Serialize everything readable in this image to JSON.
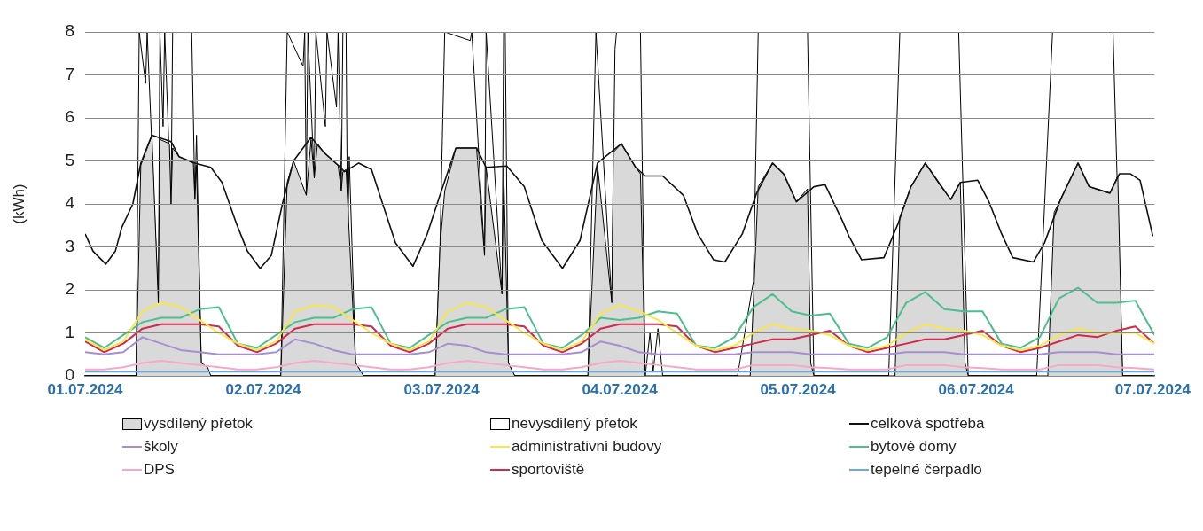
{
  "chart_data": {
    "type": "line",
    "ylabel": "(kWh)",
    "ylim": [
      0,
      8
    ],
    "yticks": [
      0,
      1,
      2,
      3,
      4,
      5,
      6,
      7,
      8
    ],
    "xlim": [
      "2024-07-01T00:00",
      "2024-07-08T00:00"
    ],
    "xticks": [
      {
        "value": "2024-07-01T00:00",
        "label": "01.07.2024"
      },
      {
        "value": "2024-07-02T04:00",
        "label": "02.07.2024"
      },
      {
        "value": "2024-07-03T08:00",
        "label": "03.07.2024"
      },
      {
        "value": "2024-07-04T12:00",
        "label": "04.07.2024"
      },
      {
        "value": "2024-07-05T16:00",
        "label": "05.07.2024"
      },
      {
        "value": "2024-07-06T20:00",
        "label": "06.07.2024"
      },
      {
        "value": "2024-07-07T23:45",
        "label": "07.07.2024"
      }
    ],
    "grid": "y",
    "legend": "bottom",
    "x": [
      "2024-07-01T00:00",
      "2024-07-01T03:00",
      "2024-07-01T06:00",
      "2024-07-01T09:00",
      "2024-07-01T12:00",
      "2024-07-01T15:00",
      "2024-07-01T18:00",
      "2024-07-01T21:00",
      "2024-07-02T00:00",
      "2024-07-02T03:00",
      "2024-07-02T06:00",
      "2024-07-02T09:00",
      "2024-07-02T12:00",
      "2024-07-02T15:00",
      "2024-07-02T18:00",
      "2024-07-02T21:00",
      "2024-07-03T00:00",
      "2024-07-03T03:00",
      "2024-07-03T06:00",
      "2024-07-03T09:00",
      "2024-07-03T12:00",
      "2024-07-03T15:00",
      "2024-07-03T18:00",
      "2024-07-03T21:00",
      "2024-07-04T00:00",
      "2024-07-04T03:00",
      "2024-07-04T06:00",
      "2024-07-04T09:00",
      "2024-07-04T12:00",
      "2024-07-04T15:00",
      "2024-07-04T18:00",
      "2024-07-04T21:00",
      "2024-07-05T00:00",
      "2024-07-05T03:00",
      "2024-07-05T06:00",
      "2024-07-05T09:00",
      "2024-07-05T12:00",
      "2024-07-05T15:00",
      "2024-07-05T18:00",
      "2024-07-05T21:00",
      "2024-07-06T00:00",
      "2024-07-06T03:00",
      "2024-07-06T06:00",
      "2024-07-06T09:00",
      "2024-07-06T12:00",
      "2024-07-06T15:00",
      "2024-07-06T18:00",
      "2024-07-06T21:00",
      "2024-07-07T00:00",
      "2024-07-07T03:00",
      "2024-07-07T06:00",
      "2024-07-07T09:00",
      "2024-07-07T12:00",
      "2024-07-07T15:00",
      "2024-07-07T18:00",
      "2024-07-07T21:00",
      "2024-07-08T00:00"
    ],
    "series": [
      {
        "name": "vysdílený přetok",
        "type": "area",
        "color": "#d9d9d9",
        "x": [
          "2024-07-01T00:00",
          "2024-07-01T08:00",
          "2024-07-01T08:45",
          "2024-07-01T10:30",
          "2024-07-01T11:30",
          "2024-07-01T11:45",
          "2024-07-01T13:15",
          "2024-07-01T13:30",
          "2024-07-01T13:45",
          "2024-07-01T14:45",
          "2024-07-01T17:00",
          "2024-07-01T17:15",
          "2024-07-01T17:30",
          "2024-07-01T18:15",
          "2024-07-01T19:15",
          "2024-07-01T19:45",
          "2024-07-02T06:45",
          "2024-07-02T07:45",
          "2024-07-02T08:45",
          "2024-07-02T10:45",
          "2024-07-02T11:30",
          "2024-07-02T12:00",
          "2024-07-02T12:30",
          "2024-07-02T13:30",
          "2024-07-02T15:45",
          "2024-07-02T16:15",
          "2024-07-02T16:30",
          "2024-07-02T17:00",
          "2024-07-02T18:30",
          "2024-07-02T19:45",
          "2024-07-03T07:00",
          "2024-07-03T07:45",
          "2024-07-03T08:30",
          "2024-07-03T10:15",
          "2024-07-03T13:30",
          "2024-07-03T14:45",
          "2024-07-03T15:00",
          "2024-07-03T17:30",
          "2024-07-03T17:45",
          "2024-07-03T18:30",
          "2024-07-03T19:30",
          "2024-07-04T07:00",
          "2024-07-04T08:30",
          "2024-07-04T10:45",
          "2024-07-04T11:00",
          "2024-07-04T12:15",
          "2024-07-04T14:30",
          "2024-07-04T15:15",
          "2024-07-04T16:00",
          "2024-07-05T08:30",
          "2024-07-05T09:45",
          "2024-07-05T12:00",
          "2024-07-05T13:45",
          "2024-07-05T15:45",
          "2024-07-05T17:30",
          "2024-07-05T18:00",
          "2024-07-05T18:30",
          "2024-07-06T07:15",
          "2024-07-06T08:00",
          "2024-07-06T09:45",
          "2024-07-06T12:00",
          "2024-07-06T14:15",
          "2024-07-06T16:00",
          "2024-07-06T17:30",
          "2024-07-06T18:15",
          "2024-07-06T18:45",
          "2024-07-07T07:15",
          "2024-07-07T08:15",
          "2024-07-07T09:15",
          "2024-07-07T12:00",
          "2024-07-07T13:45",
          "2024-07-07T17:00",
          "2024-07-07T18:15",
          "2024-07-07T19:00",
          "2024-07-07T23:45"
        ],
        "values": [
          0,
          0,
          4.9,
          5.6,
          1.7,
          5.5,
          5.4,
          4.0,
          5.3,
          5.1,
          4.95,
          4.1,
          4.9,
          0.3,
          0.2,
          0,
          0,
          4.5,
          5.0,
          4.2,
          5.5,
          4.6,
          5.4,
          5.2,
          4.9,
          4.3,
          4.75,
          4.8,
          0.3,
          0,
          0,
          3.0,
          4.3,
          5.3,
          5.3,
          2.8,
          4.85,
          1.9,
          4.85,
          0.3,
          0,
          0,
          4.9,
          1.7,
          5.2,
          5.4,
          4.85,
          4.7,
          0,
          0,
          4.4,
          4.95,
          4.7,
          4.05,
          4.35,
          0.3,
          0,
          0,
          3.7,
          4.4,
          4.95,
          4.45,
          4.1,
          4.5,
          0.3,
          0,
          0,
          3.8,
          4.1,
          4.95,
          4.4,
          4.25,
          4.65,
          0,
          0
        ]
      },
      {
        "name": "nevysdílený přetok",
        "type": "area",
        "color": "#ffffff",
        "x": [
          "2024-07-01T00:00",
          "2024-07-01T08:00",
          "2024-07-01T08:30",
          "2024-07-01T09:30",
          "2024-07-01T09:45",
          "2024-07-01T11:30",
          "2024-07-01T11:45",
          "2024-07-01T12:15",
          "2024-07-01T12:30",
          "2024-07-01T13:30",
          "2024-07-01T13:45",
          "2024-07-01T16:45",
          "2024-07-01T17:15",
          "2024-07-01T17:30",
          "2024-07-01T18:15",
          "2024-07-01T19:45",
          "2024-07-02T06:45",
          "2024-07-02T07:45",
          "2024-07-02T10:15",
          "2024-07-02T10:30",
          "2024-07-02T10:45",
          "2024-07-02T11:00",
          "2024-07-02T12:00",
          "2024-07-02T12:15",
          "2024-07-02T13:45",
          "2024-07-02T14:00",
          "2024-07-02T15:30",
          "2024-07-02T15:45",
          "2024-07-02T16:15",
          "2024-07-02T16:30",
          "2024-07-02T17:00",
          "2024-07-02T17:15",
          "2024-07-02T17:30",
          "2024-07-02T18:30",
          "2024-07-02T19:45",
          "2024-07-03T07:00",
          "2024-07-03T07:45",
          "2024-07-03T08:30",
          "2024-07-03T12:30",
          "2024-07-03T12:45",
          "2024-07-03T14:45",
          "2024-07-03T15:00",
          "2024-07-03T17:30",
          "2024-07-03T17:45",
          "2024-07-03T18:00",
          "2024-07-03T18:30",
          "2024-07-03T19:30",
          "2024-07-04T07:00",
          "2024-07-04T08:15",
          "2024-07-04T10:45",
          "2024-07-04T11:15",
          "2024-07-04T11:30",
          "2024-07-04T15:15",
          "2024-07-04T16:00",
          "2024-07-04T16:45",
          "2024-07-04T17:15",
          "2024-07-04T18:00",
          "2024-07-04T18:45",
          "2024-07-05T06:30",
          "2024-07-05T09:00",
          "2024-07-05T09:45",
          "2024-07-05T17:30",
          "2024-07-05T18:30",
          "2024-07-06T06:15",
          "2024-07-06T08:00",
          "2024-07-06T17:15",
          "2024-07-06T18:45",
          "2024-07-07T05:30",
          "2024-07-07T08:00",
          "2024-07-07T17:30",
          "2024-07-07T19:00",
          "2024-07-07T23:45"
        ],
        "values": [
          0,
          0,
          8,
          6.8,
          8,
          1.7,
          8,
          5.8,
          8,
          4.0,
          8,
          8,
          4.1,
          5.6,
          0.3,
          0,
          0,
          8,
          7.2,
          8,
          4.2,
          8,
          4.6,
          8,
          5.8,
          8,
          6.25,
          8,
          4.3,
          8,
          8,
          3.0,
          5.1,
          0.3,
          0,
          0,
          3.0,
          8,
          7.8,
          8,
          2.8,
          8,
          1.9,
          8,
          8,
          0.3,
          0,
          0,
          8,
          1.7,
          7.6,
          8,
          8,
          0,
          1.0,
          0.1,
          1.1,
          0,
          0,
          2.2,
          8,
          8,
          0,
          0,
          8,
          8,
          0,
          0,
          8,
          8,
          0,
          0
        ]
      },
      {
        "name": "celková spotřeba",
        "color": "#111111",
        "x": [
          "2024-07-01T00:00",
          "2024-07-01T01:15",
          "2024-07-01T03:15",
          "2024-07-01T04:45",
          "2024-07-01T05:45",
          "2024-07-01T07:30",
          "2024-07-01T08:45",
          "2024-07-01T10:30",
          "2024-07-01T13:30",
          "2024-07-01T14:45",
          "2024-07-01T17:15",
          "2024-07-01T19:45",
          "2024-07-01T21:30",
          "2024-07-01T23:45",
          "2024-07-02T01:30",
          "2024-07-02T03:30",
          "2024-07-02T05:15",
          "2024-07-02T07:00",
          "2024-07-02T08:45",
          "2024-07-02T11:30",
          "2024-07-02T13:30",
          "2024-07-02T15:45",
          "2024-07-02T16:45",
          "2024-07-02T19:00",
          "2024-07-02T21:00",
          "2024-07-02T22:45",
          "2024-07-03T00:45",
          "2024-07-03T03:30",
          "2024-07-03T05:45",
          "2024-07-03T07:45",
          "2024-07-03T10:15",
          "2024-07-03T13:30",
          "2024-07-03T15:00",
          "2024-07-03T18:15",
          "2024-07-03T21:00",
          "2024-07-03T23:45",
          "2024-07-04T03:00",
          "2024-07-04T05:45",
          "2024-07-04T08:30",
          "2024-07-04T12:15",
          "2024-07-04T14:30",
          "2024-07-04T16:00",
          "2024-07-04T18:45",
          "2024-07-04T22:00",
          "2024-07-05T00:15",
          "2024-07-05T02:45",
          "2024-07-05T04:30",
          "2024-07-05T07:15",
          "2024-07-05T09:30",
          "2024-07-05T12:00",
          "2024-07-05T13:45",
          "2024-07-05T15:45",
          "2024-07-05T18:30",
          "2024-07-05T20:15",
          "2024-07-05T23:00",
          "2024-07-06T00:00",
          "2024-07-06T02:00",
          "2024-07-06T05:30",
          "2024-07-06T07:45",
          "2024-07-06T09:45",
          "2024-07-06T12:00",
          "2024-07-06T14:15",
          "2024-07-06T16:00",
          "2024-07-06T17:30",
          "2024-07-06T20:15",
          "2024-07-06T22:00",
          "2024-07-07T00:00",
          "2024-07-07T01:45",
          "2024-07-07T05:00",
          "2024-07-07T06:45",
          "2024-07-07T09:15",
          "2024-07-07T12:00",
          "2024-07-07T13:45",
          "2024-07-07T17:00",
          "2024-07-07T18:30",
          "2024-07-07T20:15",
          "2024-07-07T21:45",
          "2024-07-07T23:45"
        ],
        "values": [
          3.3,
          2.9,
          2.6,
          2.9,
          3.45,
          4.0,
          4.95,
          5.6,
          5.45,
          5.1,
          4.95,
          4.85,
          4.5,
          3.55,
          2.9,
          2.5,
          2.8,
          4.0,
          5.0,
          5.55,
          5.2,
          4.9,
          4.75,
          4.95,
          4.8,
          4.0,
          3.1,
          2.55,
          3.3,
          4.2,
          5.3,
          5.3,
          4.85,
          4.88,
          4.4,
          3.15,
          2.5,
          3.15,
          4.95,
          5.4,
          4.85,
          4.65,
          4.65,
          4.2,
          3.3,
          2.7,
          2.65,
          3.3,
          4.25,
          4.95,
          4.7,
          4.05,
          4.4,
          4.45,
          3.6,
          3.25,
          2.7,
          2.75,
          3.55,
          4.4,
          4.95,
          4.47,
          4.1,
          4.5,
          4.55,
          4.05,
          3.3,
          2.75,
          2.65,
          3.1,
          4.1,
          4.95,
          4.4,
          4.25,
          4.7,
          4.7,
          4.55,
          3.25
        ]
      },
      {
        "name": "školy",
        "color": "#a58fd0",
        "values": [
          0.55,
          0.5,
          0.55,
          0.9,
          0.75,
          0.6,
          0.55,
          0.5,
          0.5,
          0.5,
          0.55,
          0.85,
          0.75,
          0.6,
          0.5,
          0.5,
          0.5,
          0.5,
          0.55,
          0.75,
          0.7,
          0.55,
          0.5,
          0.5,
          0.5,
          0.5,
          0.55,
          0.8,
          0.7,
          0.55,
          0.5,
          0.5,
          0.5,
          0.5,
          0.5,
          0.55,
          0.55,
          0.55,
          0.5,
          0.5,
          0.5,
          0.5,
          0.5,
          0.55,
          0.55,
          0.55,
          0.5,
          0.5,
          0.5,
          0.5,
          0.5,
          0.55,
          0.55,
          0.55,
          0.5,
          0.5,
          0.5
        ]
      },
      {
        "name": "administrativní budovy",
        "color": "#f7e84a",
        "values": [
          0.85,
          0.6,
          0.8,
          1.5,
          1.7,
          1.6,
          1.3,
          1.0,
          0.75,
          0.6,
          0.8,
          1.5,
          1.65,
          1.6,
          1.3,
          1.0,
          0.75,
          0.6,
          0.8,
          1.5,
          1.7,
          1.6,
          1.3,
          1.0,
          0.75,
          0.6,
          0.8,
          1.45,
          1.65,
          1.5,
          1.3,
          1.0,
          0.7,
          0.6,
          0.7,
          1.0,
          1.2,
          1.1,
          1.05,
          0.95,
          0.7,
          0.6,
          0.7,
          1.0,
          1.2,
          1.1,
          1.05,
          0.95,
          0.7,
          0.6,
          0.7,
          0.95,
          1.1,
          1.0,
          1.0,
          1.0,
          0.75
        ]
      },
      {
        "name": "bytové domy",
        "color": "#4cbf8c",
        "values": [
          0.9,
          0.65,
          0.95,
          1.25,
          1.35,
          1.35,
          1.55,
          1.6,
          0.75,
          0.65,
          0.95,
          1.25,
          1.35,
          1.35,
          1.55,
          1.6,
          0.75,
          0.65,
          0.95,
          1.25,
          1.35,
          1.35,
          1.55,
          1.6,
          0.75,
          0.65,
          0.95,
          1.35,
          1.3,
          1.35,
          1.5,
          1.45,
          0.7,
          0.65,
          0.9,
          1.6,
          1.9,
          1.5,
          1.4,
          1.45,
          0.75,
          0.65,
          0.9,
          1.7,
          1.95,
          1.55,
          1.5,
          1.5,
          0.75,
          0.65,
          0.9,
          1.8,
          2.05,
          1.7,
          1.7,
          1.75,
          0.95
        ]
      },
      {
        "name": "DPS",
        "color": "#f5a8c8",
        "values": [
          0.15,
          0.15,
          0.2,
          0.3,
          0.35,
          0.3,
          0.25,
          0.2,
          0.15,
          0.15,
          0.2,
          0.3,
          0.35,
          0.3,
          0.25,
          0.2,
          0.15,
          0.15,
          0.2,
          0.3,
          0.35,
          0.3,
          0.25,
          0.2,
          0.15,
          0.15,
          0.2,
          0.3,
          0.35,
          0.3,
          0.25,
          0.2,
          0.15,
          0.15,
          0.15,
          0.25,
          0.25,
          0.25,
          0.2,
          0.18,
          0.15,
          0.15,
          0.15,
          0.25,
          0.25,
          0.25,
          0.2,
          0.18,
          0.15,
          0.15,
          0.15,
          0.25,
          0.25,
          0.25,
          0.2,
          0.18,
          0.15
        ]
      },
      {
        "name": "sportoviště",
        "color": "#d22a4c",
        "values": [
          0.8,
          0.55,
          0.75,
          1.1,
          1.2,
          1.2,
          1.2,
          1.15,
          0.7,
          0.55,
          0.75,
          1.1,
          1.2,
          1.2,
          1.2,
          1.15,
          0.7,
          0.55,
          0.75,
          1.1,
          1.2,
          1.2,
          1.2,
          1.15,
          0.7,
          0.55,
          0.75,
          1.1,
          1.2,
          1.2,
          1.2,
          1.15,
          0.7,
          0.55,
          0.65,
          0.75,
          0.85,
          0.85,
          0.95,
          1.05,
          0.7,
          0.55,
          0.65,
          0.75,
          0.85,
          0.85,
          0.95,
          1.05,
          0.7,
          0.55,
          0.65,
          0.8,
          0.95,
          0.9,
          1.05,
          1.15,
          0.75
        ]
      },
      {
        "name": "tepelné čerpadlo",
        "color": "#6fa8d6",
        "values": [
          0.1,
          0.1,
          0.1,
          0.1,
          0.1,
          0.1,
          0.1,
          0.1,
          0.1,
          0.1,
          0.1,
          0.1,
          0.1,
          0.1,
          0.1,
          0.1,
          0.1,
          0.1,
          0.1,
          0.1,
          0.1,
          0.1,
          0.1,
          0.1,
          0.1,
          0.1,
          0.1,
          0.1,
          0.1,
          0.1,
          0.1,
          0.1,
          0.1,
          0.1,
          0.1,
          0.1,
          0.1,
          0.1,
          0.1,
          0.1,
          0.1,
          0.1,
          0.1,
          0.1,
          0.1,
          0.1,
          0.1,
          0.1,
          0.1,
          0.1,
          0.1,
          0.1,
          0.1,
          0.1,
          0.1,
          0.1,
          0.1
        ]
      }
    ]
  }
}
